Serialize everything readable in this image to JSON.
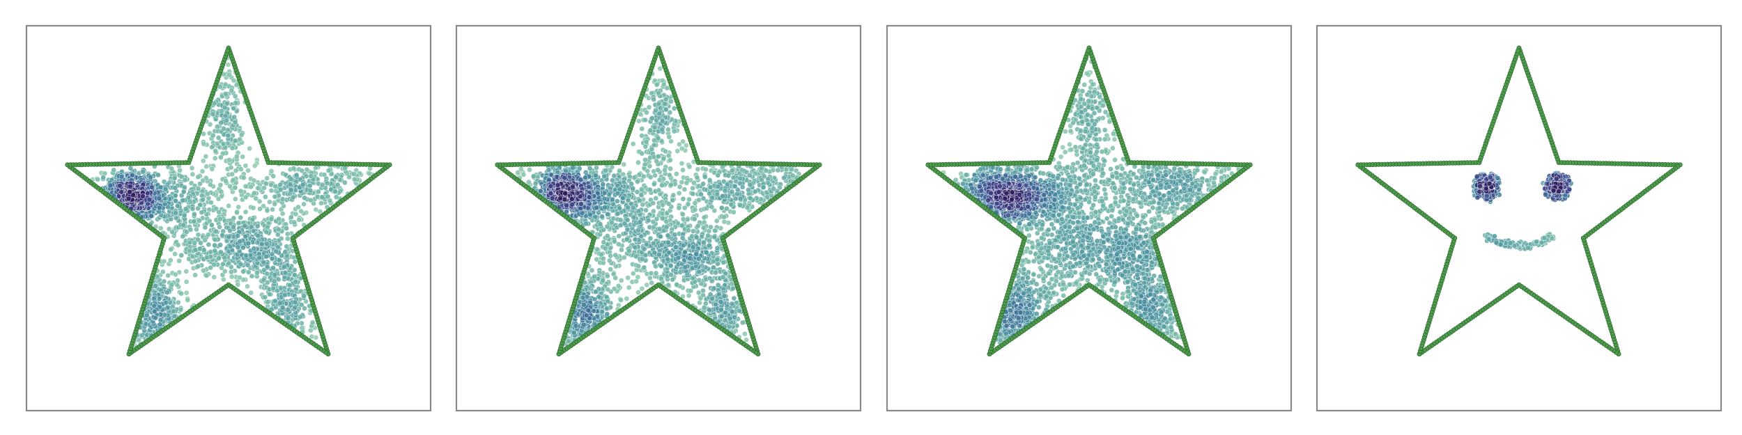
{
  "chart_data": [
    {
      "type": "scatter",
      "panel": 1,
      "grid": false,
      "axes_visible": false,
      "xlim": [
        -1.15,
        1.15
      ],
      "ylim": [
        -1.15,
        1.15
      ],
      "boundary": {
        "shape": "five-pointed star",
        "vertices": [
          [
            0,
            1
          ],
          [
            0.235,
            0.323
          ],
          [
            0.951,
            0.309
          ],
          [
            0.38,
            -0.124
          ],
          [
            0.588,
            -0.809
          ],
          [
            0,
            -0.4
          ],
          [
            -0.588,
            -0.809
          ],
          [
            -0.38,
            -0.124
          ],
          [
            -0.951,
            0.309
          ],
          [
            -0.235,
            0.323
          ]
        ],
        "marker_color": "#4f9a4c",
        "marker_edge_color": "#1f5e25"
      },
      "point_colormap": [
        "#98d1b0",
        "#6fb4a6",
        "#4a93a0",
        "#3b6d99",
        "#3a3f86",
        "#2a1a5e"
      ],
      "clusters": [
        {
          "center": [
            -0.58,
            0.12
          ],
          "spread": [
            0.1,
            0.07
          ],
          "count": 650
        },
        {
          "center": [
            -0.33,
            0.12
          ],
          "spread": [
            0.14,
            0.1
          ],
          "count": 250
        },
        {
          "center": [
            -0.02,
            0.55
          ],
          "spread": [
            0.07,
            0.22
          ],
          "count": 220
        },
        {
          "center": [
            0.48,
            0.18
          ],
          "spread": [
            0.22,
            0.08
          ],
          "count": 300
        },
        {
          "center": [
            0.17,
            -0.2
          ],
          "spread": [
            0.17,
            0.12
          ],
          "count": 420
        },
        {
          "center": [
            -0.12,
            -0.12
          ],
          "spread": [
            0.18,
            0.12
          ],
          "count": 200
        },
        {
          "center": [
            0.35,
            -0.55
          ],
          "spread": [
            0.08,
            0.15
          ],
          "count": 220
        },
        {
          "center": [
            -0.45,
            -0.58
          ],
          "spread": [
            0.1,
            0.13
          ],
          "count": 300
        }
      ]
    },
    {
      "type": "scatter",
      "panel": 2,
      "grid": false,
      "axes_visible": false,
      "xlim": [
        -1.15,
        1.15
      ],
      "ylim": [
        -1.15,
        1.15
      ],
      "boundary": {
        "shape": "five-pointed star",
        "vertices": [
          [
            0,
            1
          ],
          [
            0.235,
            0.323
          ],
          [
            0.951,
            0.309
          ],
          [
            0.38,
            -0.124
          ],
          [
            0.588,
            -0.809
          ],
          [
            0,
            -0.4
          ],
          [
            -0.588,
            -0.809
          ],
          [
            -0.38,
            -0.124
          ],
          [
            -0.951,
            0.309
          ],
          [
            -0.235,
            0.323
          ]
        ],
        "marker_color": "#4f9a4c",
        "marker_edge_color": "#1f5e25"
      },
      "point_colormap": [
        "#98d1b0",
        "#6fb4a6",
        "#4a93a0",
        "#3b6d99",
        "#3a3f86",
        "#2a1a5e"
      ],
      "clusters": [
        {
          "center": [
            -0.55,
            0.13
          ],
          "spread": [
            0.12,
            0.08
          ],
          "count": 750
        },
        {
          "center": [
            -0.28,
            0.12
          ],
          "spread": [
            0.15,
            0.1
          ],
          "count": 300
        },
        {
          "center": [
            0.0,
            0.55
          ],
          "spread": [
            0.07,
            0.22
          ],
          "count": 230
        },
        {
          "center": [
            0.5,
            0.18
          ],
          "spread": [
            0.24,
            0.09
          ],
          "count": 380
        },
        {
          "center": [
            0.18,
            -0.22
          ],
          "spread": [
            0.18,
            0.13
          ],
          "count": 480
        },
        {
          "center": [
            -0.15,
            -0.15
          ],
          "spread": [
            0.2,
            0.14
          ],
          "count": 280
        },
        {
          "center": [
            0.38,
            -0.58
          ],
          "spread": [
            0.08,
            0.13
          ],
          "count": 200
        },
        {
          "center": [
            -0.45,
            -0.58
          ],
          "spread": [
            0.11,
            0.14
          ],
          "count": 360
        }
      ]
    },
    {
      "type": "scatter",
      "panel": 3,
      "grid": false,
      "axes_visible": false,
      "xlim": [
        -1.15,
        1.15
      ],
      "ylim": [
        -1.15,
        1.15
      ],
      "boundary": {
        "shape": "five-pointed star",
        "vertices": [
          [
            0,
            1
          ],
          [
            0.235,
            0.323
          ],
          [
            0.951,
            0.309
          ],
          [
            0.38,
            -0.124
          ],
          [
            0.588,
            -0.809
          ],
          [
            0,
            -0.4
          ],
          [
            -0.588,
            -0.809
          ],
          [
            -0.38,
            -0.124
          ],
          [
            -0.951,
            0.309
          ],
          [
            -0.235,
            0.323
          ]
        ],
        "marker_color": "#4f9a4c",
        "marker_edge_color": "#1f5e25"
      },
      "point_colormap": [
        "#98d1b0",
        "#6fb4a6",
        "#4a93a0",
        "#3b6d99",
        "#3a3f86",
        "#2a1a5e"
      ],
      "clusters": [
        {
          "center": [
            -0.52,
            0.13
          ],
          "spread": [
            0.14,
            0.08
          ],
          "count": 800
        },
        {
          "center": [
            -0.25,
            0.12
          ],
          "spread": [
            0.16,
            0.1
          ],
          "count": 350
        },
        {
          "center": [
            0.0,
            0.52
          ],
          "spread": [
            0.08,
            0.22
          ],
          "count": 260
        },
        {
          "center": [
            0.5,
            0.18
          ],
          "spread": [
            0.26,
            0.09
          ],
          "count": 450
        },
        {
          "center": [
            0.2,
            -0.22
          ],
          "spread": [
            0.2,
            0.15
          ],
          "count": 550
        },
        {
          "center": [
            -0.15,
            -0.2
          ],
          "spread": [
            0.22,
            0.16
          ],
          "count": 380
        },
        {
          "center": [
            0.38,
            -0.58
          ],
          "spread": [
            0.09,
            0.14
          ],
          "count": 260
        },
        {
          "center": [
            -0.45,
            -0.58
          ],
          "spread": [
            0.12,
            0.14
          ],
          "count": 400
        }
      ]
    },
    {
      "type": "scatter",
      "panel": 4,
      "grid": false,
      "axes_visible": false,
      "xlim": [
        -1.15,
        1.15
      ],
      "ylim": [
        -1.15,
        1.15
      ],
      "boundary": {
        "shape": "five-pointed star",
        "vertices": [
          [
            0,
            1
          ],
          [
            0.235,
            0.323
          ],
          [
            0.951,
            0.309
          ],
          [
            0.38,
            -0.124
          ],
          [
            0.588,
            -0.809
          ],
          [
            0,
            -0.4
          ],
          [
            -0.588,
            -0.809
          ],
          [
            -0.38,
            -0.124
          ],
          [
            -0.951,
            0.309
          ],
          [
            -0.235,
            0.323
          ]
        ],
        "marker_color": "#4f9a4c",
        "marker_edge_color": "#1f5e25"
      },
      "point_colormap": [
        "#98d1b0",
        "#6fb4a6",
        "#4a93a0",
        "#3b6d99",
        "#3a3f86",
        "#2a1a5e"
      ],
      "smiley": {
        "eyes": [
          {
            "center": [
              -0.19,
              0.18
            ],
            "ring_radius": 0.07,
            "core_spread": 0.028
          },
          {
            "center": [
              0.23,
              0.18
            ],
            "ring_radius": 0.07,
            "core_spread": 0.028
          }
        ],
        "mouth": {
          "center": [
            0.0,
            -0.08
          ],
          "rx": 0.2,
          "ry": 0.09,
          "arc_degrees": [
            200,
            340
          ]
        }
      }
    }
  ]
}
